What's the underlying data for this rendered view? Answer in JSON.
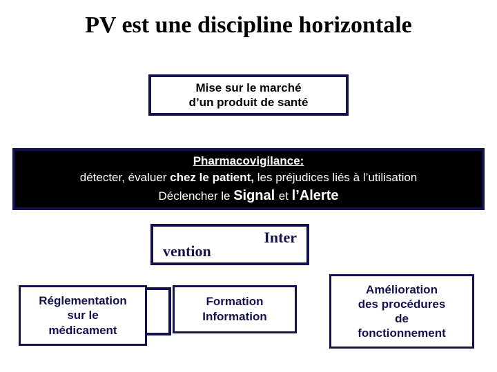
{
  "colors": {
    "border": "#12124f",
    "text_dark": "#12124f",
    "black": "#000000",
    "white": "#ffffff"
  },
  "title": "PV est une discipline horizontale",
  "mise": {
    "line1": "Mise sur le marché",
    "line2": "d’un produit de santé"
  },
  "pharma": {
    "title": "Pharmacovigilance:",
    "line_prefix": "détecter, évaluer ",
    "line_bold1": "chez le patient,",
    "line_mid": "  les préjudices liés à l’utilisation",
    "last_prefix": "Déclencher le ",
    "last_big1": "Signal ",
    "last_mid": "et ",
    "last_big2": "l’Alerte"
  },
  "inter": {
    "top": "Inter",
    "bot": "vention"
  },
  "reg": {
    "l1": "Réglementation",
    "l2": "sur le",
    "l3": "médicament"
  },
  "form": {
    "l1": "Formation",
    "l2": "Information"
  },
  "amel": {
    "l1": "Amélioration",
    "l2": "des procédures",
    "l3": "de",
    "l4": "fonctionnement"
  }
}
